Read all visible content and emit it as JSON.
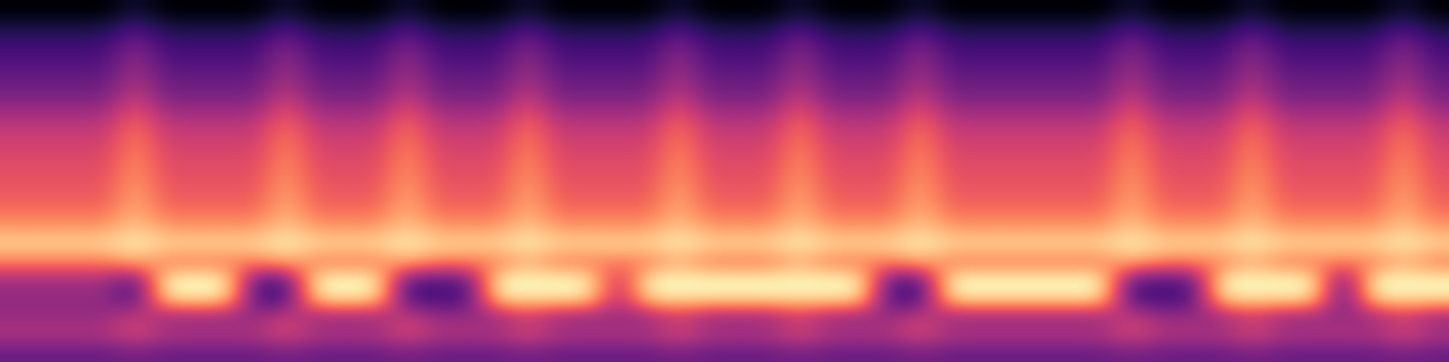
{
  "chart_data": {
    "type": "heatmap",
    "color": "magma",
    "tick_labels": false,
    "cells": [
      [
        15,
        15,
        15,
        15,
        22,
        15,
        15,
        15,
        15,
        22,
        15,
        15,
        15,
        22,
        15,
        15,
        15,
        22,
        15,
        15,
        15,
        15,
        22,
        15,
        15,
        15,
        22,
        15,
        15,
        15,
        22,
        15,
        15,
        15,
        15,
        15,
        15,
        22,
        15,
        15,
        15,
        22,
        15,
        15,
        15,
        15,
        22,
        15
      ],
      [
        24,
        24,
        24,
        24,
        32,
        24,
        24,
        24,
        24,
        32,
        24,
        24,
        24,
        32,
        24,
        24,
        24,
        32,
        24,
        24,
        24,
        24,
        32,
        24,
        24,
        24,
        32,
        24,
        24,
        24,
        32,
        24,
        24,
        24,
        24,
        24,
        24,
        32,
        24,
        24,
        24,
        32,
        24,
        24,
        24,
        24,
        32,
        24
      ],
      [
        30,
        30,
        30,
        30,
        42,
        30,
        30,
        30,
        30,
        42,
        30,
        30,
        30,
        42,
        30,
        30,
        30,
        42,
        30,
        30,
        30,
        30,
        42,
        30,
        30,
        30,
        42,
        30,
        30,
        30,
        42,
        30,
        30,
        30,
        30,
        30,
        30,
        42,
        30,
        30,
        30,
        42,
        30,
        30,
        30,
        30,
        42,
        30
      ],
      [
        34,
        34,
        34,
        34,
        46,
        34,
        34,
        34,
        34,
        46,
        34,
        34,
        34,
        46,
        34,
        34,
        34,
        46,
        34,
        34,
        34,
        34,
        46,
        34,
        34,
        34,
        46,
        34,
        34,
        34,
        46,
        34,
        34,
        34,
        34,
        34,
        34,
        46,
        34,
        34,
        34,
        46,
        34,
        34,
        34,
        34,
        46,
        34
      ],
      [
        38,
        38,
        38,
        38,
        50,
        38,
        38,
        38,
        38,
        50,
        38,
        38,
        38,
        50,
        38,
        38,
        38,
        50,
        38,
        38,
        38,
        38,
        50,
        38,
        38,
        38,
        50,
        38,
        38,
        38,
        50,
        38,
        38,
        38,
        38,
        38,
        38,
        50,
        38,
        38,
        38,
        50,
        38,
        38,
        38,
        38,
        50,
        38
      ],
      [
        42,
        42,
        42,
        42,
        56,
        42,
        42,
        42,
        42,
        56,
        42,
        42,
        42,
        56,
        42,
        42,
        42,
        56,
        42,
        42,
        42,
        42,
        56,
        42,
        42,
        42,
        56,
        42,
        42,
        42,
        56,
        42,
        42,
        42,
        42,
        42,
        42,
        56,
        42,
        42,
        42,
        56,
        42,
        42,
        42,
        42,
        56,
        42
      ],
      [
        50,
        50,
        50,
        50,
        64,
        50,
        50,
        50,
        50,
        64,
        50,
        50,
        50,
        64,
        50,
        50,
        50,
        64,
        50,
        50,
        50,
        50,
        64,
        50,
        50,
        50,
        64,
        50,
        50,
        50,
        64,
        50,
        50,
        50,
        50,
        50,
        50,
        64,
        50,
        50,
        50,
        64,
        50,
        50,
        50,
        50,
        64,
        50
      ],
      [
        55,
        55,
        55,
        55,
        68,
        55,
        55,
        55,
        55,
        68,
        55,
        55,
        55,
        68,
        55,
        55,
        55,
        68,
        55,
        55,
        55,
        55,
        68,
        55,
        55,
        55,
        68,
        55,
        55,
        55,
        68,
        55,
        55,
        55,
        55,
        55,
        55,
        68,
        55,
        55,
        55,
        68,
        55,
        55,
        55,
        55,
        68,
        55
      ],
      [
        58,
        58,
        58,
        58,
        70,
        58,
        58,
        58,
        58,
        70,
        58,
        58,
        58,
        70,
        58,
        58,
        58,
        70,
        58,
        58,
        58,
        58,
        70,
        58,
        58,
        58,
        70,
        58,
        58,
        58,
        70,
        58,
        58,
        58,
        58,
        58,
        58,
        70,
        58,
        58,
        58,
        70,
        58,
        58,
        58,
        58,
        70,
        58
      ],
      [
        60,
        60,
        60,
        60,
        72,
        60,
        60,
        60,
        60,
        72,
        60,
        60,
        60,
        72,
        60,
        60,
        60,
        72,
        60,
        60,
        60,
        60,
        72,
        60,
        60,
        60,
        72,
        60,
        60,
        60,
        72,
        60,
        60,
        60,
        60,
        60,
        60,
        72,
        60,
        60,
        60,
        72,
        60,
        60,
        60,
        60,
        72,
        60
      ],
      [
        62,
        62,
        62,
        62,
        74,
        62,
        62,
        62,
        62,
        74,
        62,
        62,
        62,
        74,
        62,
        62,
        62,
        74,
        62,
        62,
        62,
        62,
        74,
        62,
        62,
        62,
        74,
        62,
        62,
        62,
        74,
        62,
        62,
        62,
        62,
        62,
        62,
        74,
        62,
        62,
        62,
        74,
        62,
        62,
        62,
        62,
        74,
        62
      ],
      [
        65,
        65,
        65,
        65,
        76,
        65,
        65,
        65,
        65,
        76,
        65,
        65,
        65,
        76,
        65,
        65,
        65,
        76,
        65,
        65,
        65,
        65,
        76,
        65,
        65,
        65,
        76,
        65,
        65,
        65,
        76,
        65,
        65,
        65,
        65,
        65,
        65,
        76,
        65,
        65,
        65,
        76,
        65,
        65,
        65,
        65,
        76,
        65
      ],
      [
        72,
        72,
        72,
        72,
        80,
        72,
        72,
        72,
        72,
        80,
        72,
        72,
        72,
        80,
        72,
        72,
        72,
        80,
        72,
        72,
        72,
        72,
        80,
        72,
        72,
        72,
        80,
        72,
        72,
        72,
        80,
        72,
        72,
        72,
        72,
        72,
        72,
        80,
        72,
        72,
        72,
        80,
        72,
        72,
        72,
        72,
        80,
        72
      ],
      [
        82,
        82,
        82,
        82,
        86,
        82,
        82,
        82,
        82,
        86,
        82,
        82,
        82,
        86,
        82,
        82,
        82,
        86,
        82,
        82,
        82,
        82,
        86,
        82,
        82,
        82,
        86,
        82,
        82,
        82,
        86,
        82,
        82,
        82,
        82,
        82,
        82,
        86,
        82,
        82,
        82,
        86,
        82,
        82,
        82,
        82,
        86,
        82
      ],
      [
        68,
        68,
        68,
        68,
        76,
        68,
        68,
        68,
        68,
        76,
        68,
        68,
        68,
        76,
        68,
        68,
        68,
        76,
        68,
        68,
        68,
        68,
        76,
        68,
        68,
        68,
        76,
        68,
        68,
        68,
        76,
        68,
        68,
        68,
        68,
        68,
        68,
        76,
        68,
        68,
        68,
        76,
        68,
        68,
        68,
        68,
        76,
        68
      ],
      [
        48,
        48,
        48,
        48,
        35,
        88,
        88,
        88,
        35,
        35,
        88,
        88,
        88,
        35,
        35,
        35,
        88,
        88,
        88,
        88,
        50,
        88,
        88,
        88,
        88,
        88,
        88,
        88,
        88,
        35,
        35,
        88,
        88,
        88,
        88,
        88,
        88,
        35,
        35,
        35,
        88,
        88,
        88,
        88,
        35,
        88,
        88,
        88
      ],
      [
        45,
        45,
        45,
        45,
        32,
        84,
        84,
        84,
        32,
        32,
        84,
        84,
        84,
        32,
        32,
        32,
        84,
        84,
        84,
        84,
        48,
        84,
        84,
        84,
        84,
        84,
        84,
        84,
        84,
        32,
        32,
        84,
        84,
        84,
        84,
        84,
        84,
        32,
        32,
        32,
        84,
        84,
        84,
        84,
        32,
        84,
        84,
        84
      ],
      [
        46,
        46,
        46,
        46,
        55,
        46,
        46,
        46,
        46,
        55,
        46,
        46,
        46,
        55,
        46,
        46,
        46,
        55,
        46,
        46,
        46,
        46,
        55,
        46,
        46,
        46,
        55,
        46,
        46,
        46,
        55,
        46,
        46,
        46,
        46,
        46,
        46,
        55,
        46,
        46,
        46,
        55,
        46,
        46,
        46,
        46,
        55,
        46
      ],
      [
        50,
        50,
        50,
        50,
        58,
        50,
        50,
        50,
        50,
        58,
        50,
        50,
        50,
        58,
        50,
        50,
        50,
        58,
        50,
        50,
        50,
        50,
        58,
        50,
        50,
        50,
        58,
        50,
        50,
        50,
        58,
        50,
        50,
        50,
        50,
        50,
        50,
        58,
        50,
        50,
        50,
        58,
        50,
        50,
        50,
        50,
        58,
        50
      ],
      [
        38,
        38,
        38,
        38,
        40,
        38,
        38,
        38,
        38,
        40,
        38,
        38,
        38,
        40,
        38,
        38,
        38,
        40,
        38,
        38,
        38,
        38,
        40,
        38,
        38,
        38,
        40,
        38,
        38,
        38,
        40,
        38,
        38,
        38,
        38,
        38,
        38,
        40,
        38,
        38,
        38,
        40,
        38,
        38,
        38,
        38,
        40,
        38
      ]
    ]
  }
}
